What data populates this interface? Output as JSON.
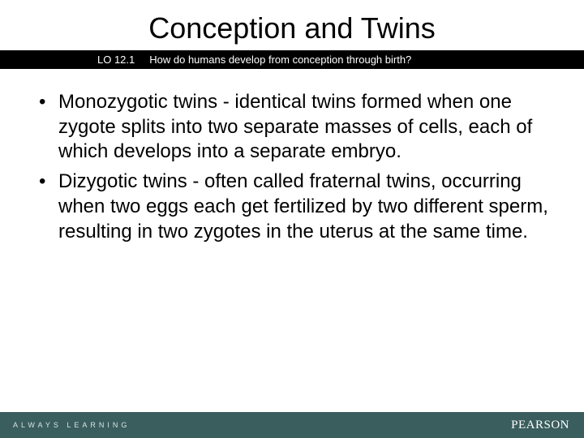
{
  "colors": {
    "slide_bg": "#ffffff",
    "lo_bar_bg": "#000000",
    "lo_bar_text": "#ffffff",
    "body_text": "#000000",
    "footer_bg": "#3a5d5d",
    "footer_left_text": "#d9e3e3",
    "footer_right_text": "#ffffff"
  },
  "typography": {
    "title_fontsize": 36,
    "lo_fontsize": 13,
    "body_fontsize": 24,
    "footer_left_fontsize": 9,
    "footer_right_fontsize": 15,
    "body_lineheight": 1.28
  },
  "header": {
    "title": "Conception and Twins"
  },
  "lo_bar": {
    "label": "LO 12.1",
    "question": "How do humans develop from conception through birth?"
  },
  "bullets": [
    "Monozygotic twins - identical twins formed when one zygote splits into two separate masses of cells, each of which develops into a separate embryo.",
    "Dizygotic twins - often called fraternal twins, occurring when two eggs each get fertilized by two different sperm, resulting in two zygotes in the uterus at the same time."
  ],
  "footer": {
    "left": "ALWAYS LEARNING",
    "right": "PEARSON"
  }
}
